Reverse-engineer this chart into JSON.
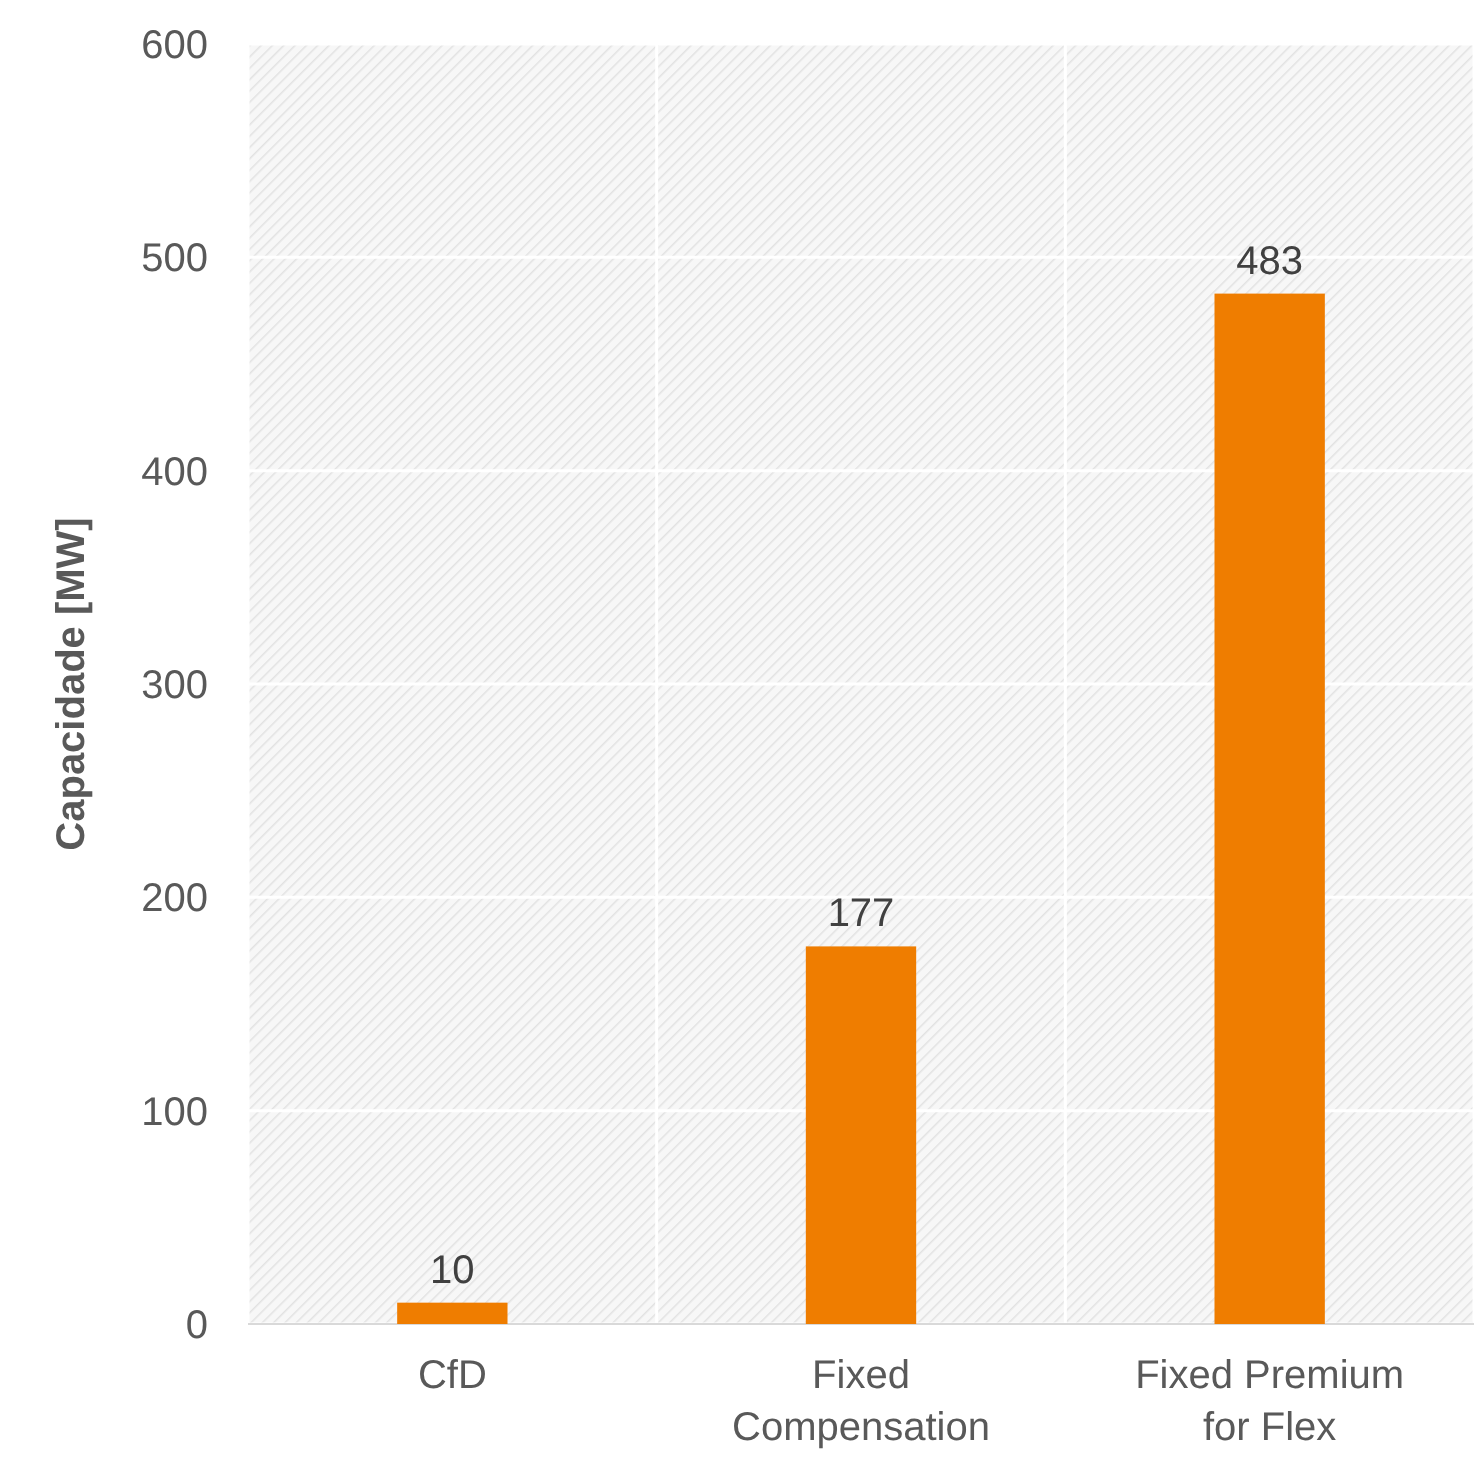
{
  "chart_data": {
    "type": "bar",
    "ylabel": "Capacidade [MW]",
    "categories": [
      "CfD",
      "Fixed Compensation",
      "Fixed Premium for Flex"
    ],
    "values": [
      10,
      177,
      483
    ],
    "color": "#ef7d00",
    "ylim": [
      0,
      600
    ],
    "yticks": [
      0,
      100,
      200,
      300,
      400,
      500,
      600
    ],
    "grid": true,
    "data_labels": true
  }
}
